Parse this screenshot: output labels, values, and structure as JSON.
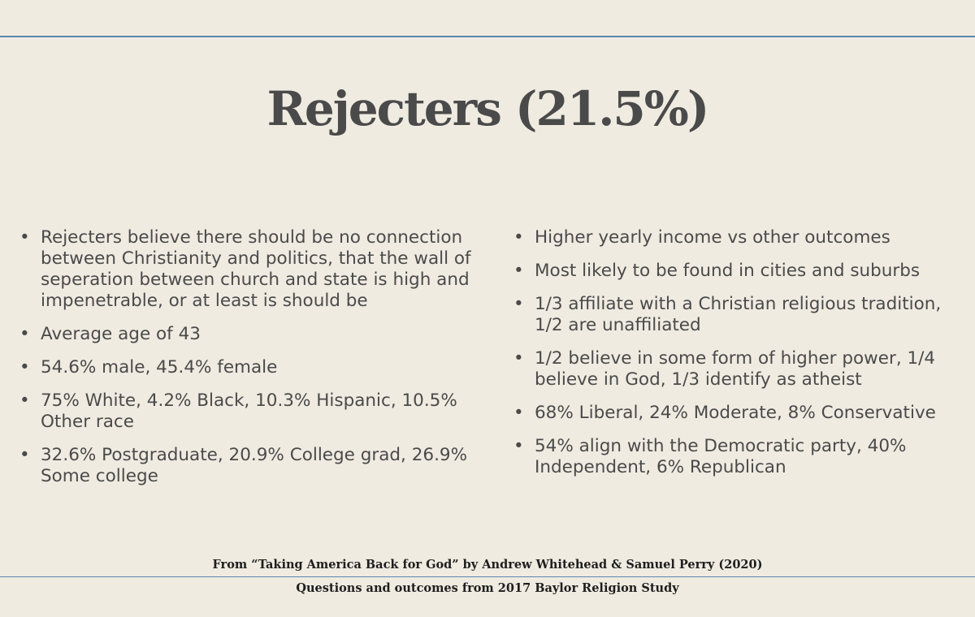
{
  "slide": {
    "title": "Rejecters (21.5%)",
    "bullet_glyph": "•",
    "left_bullets": [
      "Rejecters believe there should be no connection between Christianity and politics, that the wall of seperation between church and state is high and impenetrable, or at least is should be",
      "Average age of 43",
      "54.6% male, 45.4% female",
      "75% White, 4.2% Black, 10.3% Hispanic, 10.5% Other race",
      "32.6% Postgraduate, 20.9% College grad, 26.9% Some college"
    ],
    "right_bullets": [
      "Higher yearly income vs other outcomes",
      "Most likely to be found in cities and suburbs",
      "1/3 affiliate with a Christian religious tradition, 1/2 are unaffiliated",
      "1/2 believe in some form of higher power, 1/4 believe in God, 1/3 identify as atheist",
      "68% Liberal, 24% Moderate, 8% Conservative",
      "54% align with the Democratic party, 40% Independent, 6% Republican"
    ],
    "source_line": "From “Taking America Back for God” by Andrew Whitehead & Samuel Perry (2020)",
    "study_line": "Questions and outcomes from 2017 Baylor Religion Study"
  },
  "colors": {
    "background": "#efebe1",
    "rule": "#5b86b0",
    "text": "#4a4a4a",
    "footer_text": "#1e1e1e"
  }
}
